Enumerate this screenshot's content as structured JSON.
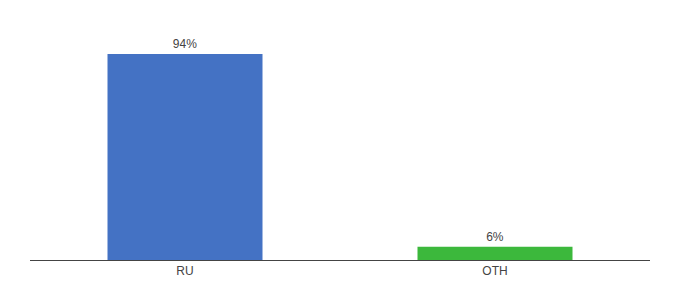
{
  "chart_data": {
    "type": "bar",
    "categories": [
      "RU",
      "OTH"
    ],
    "values": [
      94,
      6
    ],
    "value_labels": [
      "94%",
      "6%"
    ],
    "colors": [
      "#4472c4",
      "#3cb83c"
    ],
    "ylim": [
      0,
      105
    ],
    "grid": false,
    "data_labels": true,
    "tick_labels": "x"
  }
}
